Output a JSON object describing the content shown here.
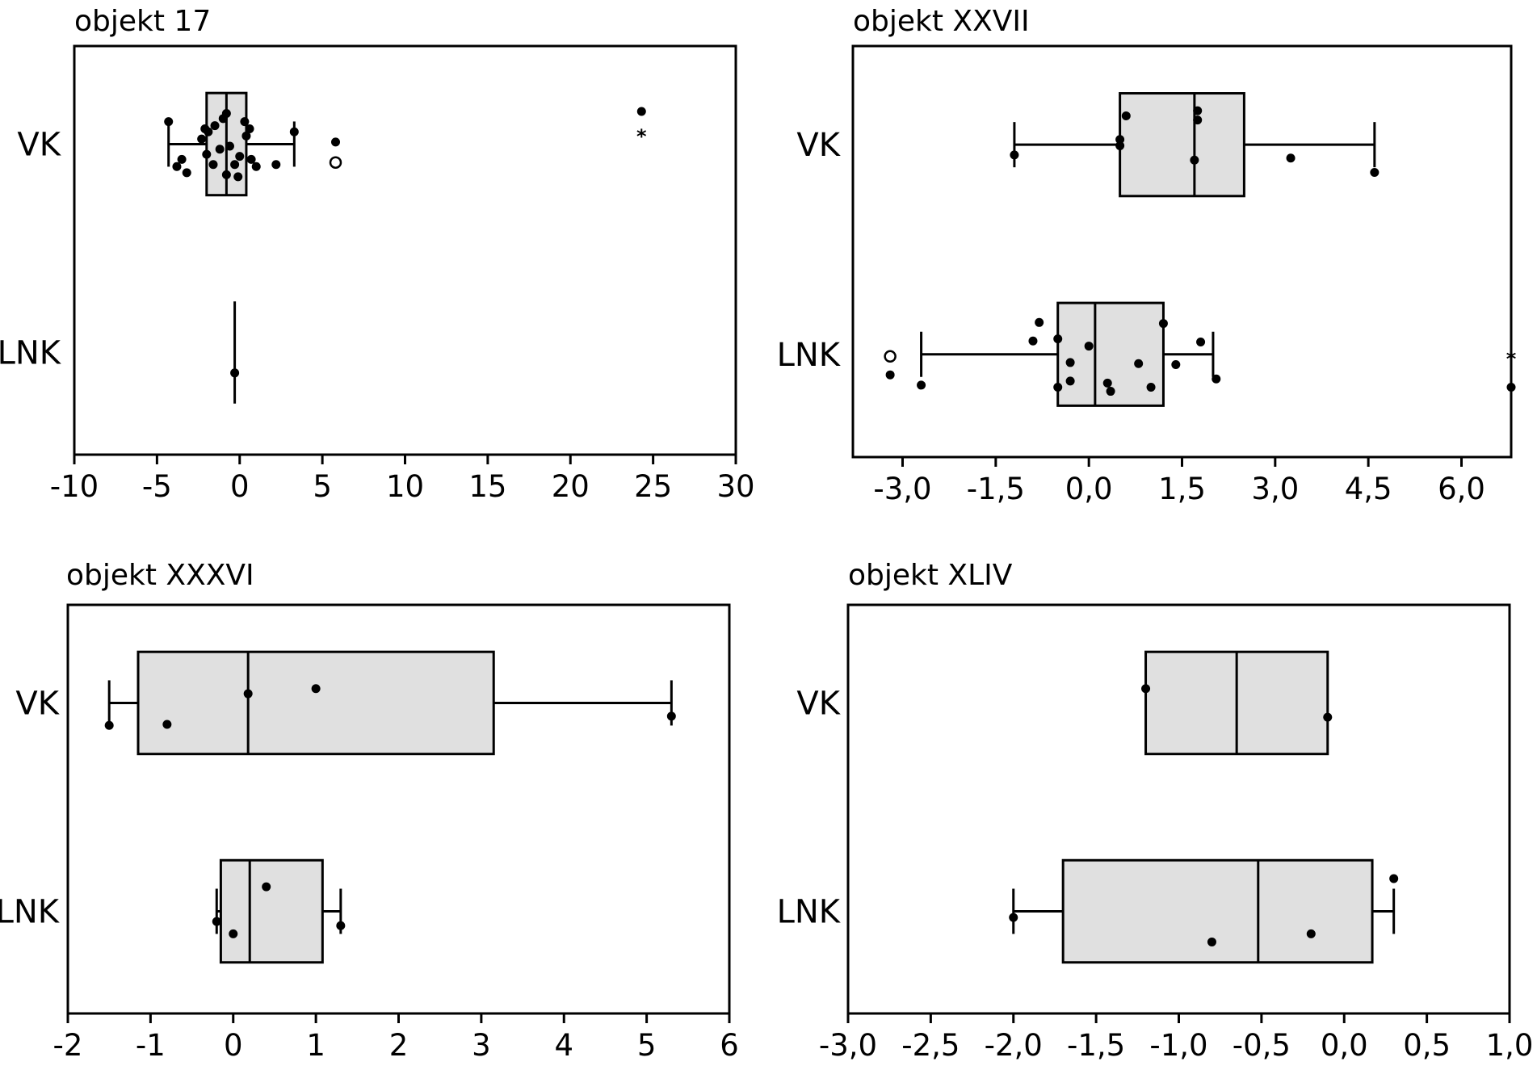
{
  "chart_data": [
    {
      "type": "boxplot",
      "title": "objekt 17",
      "categories": [
        "VK",
        "LNK"
      ],
      "xticks": [
        -10,
        -5,
        0,
        5,
        10,
        15,
        20,
        25,
        30
      ],
      "xtick_labels": [
        "-10",
        "-5",
        "0",
        "5",
        "10",
        "15",
        "20",
        "25",
        "30"
      ],
      "xlim": [
        -10,
        30
      ],
      "groups": [
        {
          "name": "VK",
          "whisker_low": -4.3,
          "q1": -2.0,
          "median": -0.8,
          "q3": 0.4,
          "whisker_high": 3.3,
          "points": [
            [
              -4.3,
              0.72
            ],
            [
              -3.8,
              0.28
            ],
            [
              -3.5,
              0.35
            ],
            [
              -3.2,
              0.22
            ],
            [
              -2.3,
              0.55
            ],
            [
              -2.1,
              0.65
            ],
            [
              -2.0,
              0.4
            ],
            [
              -1.9,
              0.62
            ],
            [
              -1.6,
              0.3
            ],
            [
              -1.5,
              0.68
            ],
            [
              -1.2,
              0.45
            ],
            [
              -1.0,
              0.75
            ],
            [
              -0.8,
              0.8
            ],
            [
              -0.8,
              0.2
            ],
            [
              -0.6,
              0.48
            ],
            [
              -0.3,
              0.3
            ],
            [
              -0.1,
              0.18
            ],
            [
              0.0,
              0.38
            ],
            [
              0.3,
              0.72
            ],
            [
              0.4,
              0.58
            ],
            [
              0.6,
              0.65
            ],
            [
              0.7,
              0.35
            ],
            [
              1.0,
              0.28
            ],
            [
              2.2,
              0.3
            ],
            [
              3.3,
              0.62
            ],
            [
              5.8,
              0.52
            ],
            [
              24.3,
              0.82
            ]
          ],
          "outliers_hollow": [
            [
              5.8,
              0.32
            ]
          ],
          "outliers_star": [
            [
              24.3,
              0.6
            ]
          ]
        },
        {
          "name": "LNK",
          "whisker_low": -0.3,
          "q1": -0.3,
          "median": -0.3,
          "q3": -0.3,
          "whisker_high": -0.3,
          "points": [
            [
              -0.3,
              0.3
            ]
          ],
          "outliers_hollow": [],
          "outliers_star": []
        }
      ]
    },
    {
      "type": "boxplot",
      "title": "objekt XXVII",
      "categories": [
        "VK",
        "LNK"
      ],
      "xticks": [
        -3.0,
        -1.5,
        0.0,
        1.5,
        3.0,
        4.5,
        6.0
      ],
      "xtick_labels": [
        "-3,0",
        "-1,5",
        "0,0",
        "1,5",
        "3,0",
        "4,5",
        "6,0"
      ],
      "xlim": [
        -3.8,
        6.8
      ],
      "groups": [
        {
          "name": "VK",
          "whisker_low": -1.2,
          "q1": 0.5,
          "median": 1.7,
          "q3": 2.5,
          "whisker_high": 4.6,
          "points": [
            [
              -1.2,
              0.4
            ],
            [
              0.5,
              0.55
            ],
            [
              0.5,
              0.49
            ],
            [
              0.6,
              0.78
            ],
            [
              1.7,
              0.35
            ],
            [
              1.75,
              0.74
            ],
            [
              1.75,
              0.83
            ],
            [
              3.25,
              0.37
            ],
            [
              4.6,
              0.23
            ]
          ],
          "outliers_hollow": [],
          "outliers_star": []
        },
        {
          "name": "LNK",
          "whisker_low": -2.7,
          "q1": -0.5,
          "median": 0.1,
          "q3": 1.2,
          "whisker_high": 2.0,
          "points": [
            [
              -3.2,
              0.3
            ],
            [
              -2.7,
              0.2
            ],
            [
              -0.9,
              0.63
            ],
            [
              -0.8,
              0.81
            ],
            [
              -0.5,
              0.18
            ],
            [
              -0.5,
              0.65
            ],
            [
              -0.3,
              0.42
            ],
            [
              -0.3,
              0.24
            ],
            [
              0.0,
              0.58
            ],
            [
              0.3,
              0.22
            ],
            [
              0.35,
              0.14
            ],
            [
              0.8,
              0.41
            ],
            [
              1.0,
              0.18
            ],
            [
              1.2,
              0.8
            ],
            [
              1.4,
              0.4
            ],
            [
              1.8,
              0.62
            ],
            [
              2.05,
              0.26
            ],
            [
              6.8,
              0.18
            ]
          ],
          "outliers_hollow": [
            [
              -3.2,
              0.48
            ]
          ],
          "outliers_star": [
            [
              6.8,
              0.48
            ]
          ]
        }
      ]
    },
    {
      "type": "boxplot",
      "title": "objekt XXXVI",
      "categories": [
        "VK",
        "LNK"
      ],
      "xticks": [
        -2,
        -1,
        0,
        1,
        2,
        3,
        4,
        5,
        6
      ],
      "xtick_labels": [
        "-2",
        "-1",
        "0",
        "1",
        "2",
        "3",
        "4",
        "5",
        "6"
      ],
      "xlim": [
        -2,
        6
      ],
      "groups": [
        {
          "name": "VK",
          "whisker_low": -1.5,
          "q1": -1.15,
          "median": 0.18,
          "q3": 3.15,
          "whisker_high": 5.3,
          "points": [
            [
              -1.5,
              0.28
            ],
            [
              -0.8,
              0.29
            ],
            [
              0.18,
              0.59
            ],
            [
              1.0,
              0.64
            ],
            [
              5.3,
              0.37
            ]
          ],
          "outliers_hollow": [],
          "outliers_star": []
        },
        {
          "name": "LNK",
          "whisker_low": -0.2,
          "q1": -0.15,
          "median": 0.2,
          "q3": 1.08,
          "whisker_high": 1.3,
          "points": [
            [
              -0.2,
              0.4
            ],
            [
              0.0,
              0.28
            ],
            [
              0.4,
              0.74
            ],
            [
              1.3,
              0.36
            ]
          ],
          "outliers_hollow": [],
          "outliers_star": []
        }
      ]
    },
    {
      "type": "boxplot",
      "title": "objekt XLIV",
      "categories": [
        "VK",
        "LNK"
      ],
      "xticks": [
        -3.0,
        -2.5,
        -2.0,
        -1.5,
        -1.0,
        -0.5,
        0.0,
        0.5,
        1.0
      ],
      "xtick_labels": [
        "-3,0",
        "-2,5",
        "-2,0",
        "-1,5",
        "-1,0",
        "-0,5",
        "0,0",
        "0,5",
        "1,0"
      ],
      "xlim": [
        -3.0,
        1.0
      ],
      "groups": [
        {
          "name": "VK",
          "whisker_low": -1.2,
          "q1": -1.2,
          "median": -0.65,
          "q3": -0.1,
          "whisker_high": -0.1,
          "points": [
            [
              -1.2,
              0.64
            ],
            [
              -0.1,
              0.36
            ]
          ],
          "outliers_hollow": [],
          "outliers_star": []
        },
        {
          "name": "LNK",
          "whisker_low": -2.0,
          "q1": -1.7,
          "median": -0.52,
          "q3": 0.17,
          "whisker_high": 0.3,
          "points": [
            [
              -2.0,
              0.44
            ],
            [
              -0.8,
              0.2
            ],
            [
              -0.2,
              0.28
            ],
            [
              0.3,
              0.82
            ]
          ],
          "outliers_hollow": [],
          "outliers_star": []
        }
      ]
    }
  ]
}
